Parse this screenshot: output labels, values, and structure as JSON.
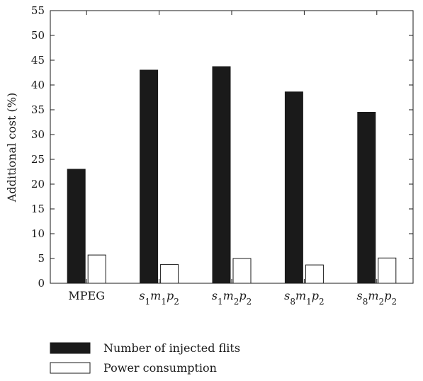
{
  "chart_data": {
    "type": "bar",
    "title": "",
    "xlabel": "",
    "ylabel": "Additional cost (%)",
    "ylim": [
      0,
      55
    ],
    "yticks": [
      0,
      5,
      10,
      15,
      20,
      25,
      30,
      35,
      40,
      45,
      50,
      55
    ],
    "grid": false,
    "legend_position": "bottom-left",
    "categories": [
      {
        "label": "MPEG",
        "parts": [
          {
            "t": "MPEG"
          }
        ]
      },
      {
        "label": "s1m1p2",
        "parts": [
          {
            "t": "s",
            "sub": "1"
          },
          {
            "t": "m",
            "sub": "1"
          },
          {
            "t": "p",
            "sub": "2"
          }
        ]
      },
      {
        "label": "s1m2p2",
        "parts": [
          {
            "t": "s",
            "sub": "1"
          },
          {
            "t": "m",
            "sub": "2"
          },
          {
            "t": "p",
            "sub": "2"
          }
        ]
      },
      {
        "label": "s8m1p2",
        "parts": [
          {
            "t": "s",
            "sub": "8"
          },
          {
            "t": "m",
            "sub": "1"
          },
          {
            "t": "p",
            "sub": "2"
          }
        ]
      },
      {
        "label": "s8m2p2",
        "parts": [
          {
            "t": "s",
            "sub": "8"
          },
          {
            "t": "m",
            "sub": "2"
          },
          {
            "t": "p",
            "sub": "2"
          }
        ]
      }
    ],
    "series": [
      {
        "name": "Number of injected flits",
        "color": "#1a1a1a",
        "values": [
          23.0,
          43.0,
          43.7,
          38.6,
          34.5
        ]
      },
      {
        "name": "Power consumption",
        "color": "#ffffff",
        "values": [
          5.7,
          3.8,
          5.0,
          3.7,
          5.1
        ]
      }
    ]
  }
}
